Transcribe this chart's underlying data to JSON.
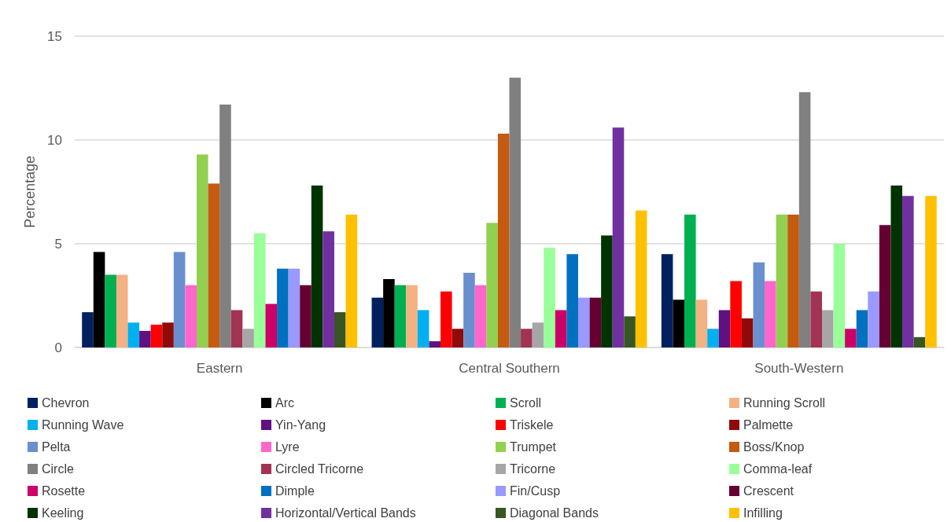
{
  "chart_data": {
    "type": "bar",
    "ylabel": "Percentage",
    "categories": [
      "Eastern",
      "Central Southern",
      "South-Western"
    ],
    "ylim": [
      0,
      15
    ],
    "yticks": [
      0,
      5,
      10,
      15
    ],
    "grid": "y",
    "legend": "bottom",
    "series": [
      {
        "name": "Chevron",
        "color": "#002060",
        "values": [
          1.7,
          2.4,
          4.5
        ]
      },
      {
        "name": "Arc",
        "color": "#000000",
        "values": [
          4.6,
          3.3,
          2.3
        ]
      },
      {
        "name": "Scroll",
        "color": "#00b050",
        "values": [
          3.5,
          3.0,
          6.4
        ]
      },
      {
        "name": "Running Scroll",
        "color": "#f4b183",
        "values": [
          3.5,
          3.0,
          2.3
        ]
      },
      {
        "name": "Running Wave",
        "color": "#00b0f0",
        "values": [
          1.2,
          1.8,
          0.9
        ]
      },
      {
        "name": "Yin-Yang",
        "color": "#601080",
        "values": [
          0.8,
          0.3,
          1.8
        ]
      },
      {
        "name": "Triskele",
        "color": "#ff0000",
        "values": [
          1.1,
          2.7,
          3.2
        ]
      },
      {
        "name": "Palmette",
        "color": "#900a0a",
        "values": [
          1.2,
          0.9,
          1.4
        ]
      },
      {
        "name": "Pelta",
        "color": "#6a8fcf",
        "values": [
          4.6,
          3.6,
          4.1
        ]
      },
      {
        "name": "Lyre",
        "color": "#ff66cc",
        "values": [
          3.0,
          3.0,
          3.2
        ]
      },
      {
        "name": "Trumpet",
        "color": "#92d050",
        "values": [
          9.3,
          6.0,
          6.4
        ]
      },
      {
        "name": "Boss/Knop",
        "color": "#c55a11",
        "values": [
          7.9,
          10.3,
          6.4
        ]
      },
      {
        "name": "Circle",
        "color": "#808080",
        "values": [
          11.7,
          13.0,
          12.3
        ]
      },
      {
        "name": "Circled Tricorne",
        "color": "#a33352",
        "values": [
          1.8,
          0.9,
          2.7
        ]
      },
      {
        "name": "Tricorne",
        "color": "#a6a6a6",
        "values": [
          0.9,
          1.2,
          1.8
        ]
      },
      {
        "name": "Comma-leaf",
        "color": "#99ff99",
        "values": [
          5.5,
          4.8,
          5.0
        ]
      },
      {
        "name": "Rosette",
        "color": "#cc0066",
        "values": [
          2.1,
          1.8,
          0.9
        ]
      },
      {
        "name": "Dimple",
        "color": "#0070c0",
        "values": [
          3.8,
          4.5,
          1.8
        ]
      },
      {
        "name": "Fin/Cusp",
        "color": "#9999ff",
        "values": [
          3.8,
          2.4,
          2.7
        ]
      },
      {
        "name": "Crescent",
        "color": "#660033",
        "values": [
          3.0,
          2.4,
          5.9
        ]
      },
      {
        "name": "Keeling",
        "color": "#003300",
        "values": [
          7.8,
          5.4,
          7.8
        ]
      },
      {
        "name": "Horizontal/Vertical Bands",
        "color": "#7030a0",
        "values": [
          5.6,
          10.6,
          7.3
        ]
      },
      {
        "name": "Diagonal Bands",
        "color": "#375623",
        "values": [
          1.7,
          1.5,
          0.5
        ]
      },
      {
        "name": "Infilling",
        "color": "#ffc000",
        "values": [
          6.4,
          6.6,
          7.3
        ]
      }
    ]
  }
}
